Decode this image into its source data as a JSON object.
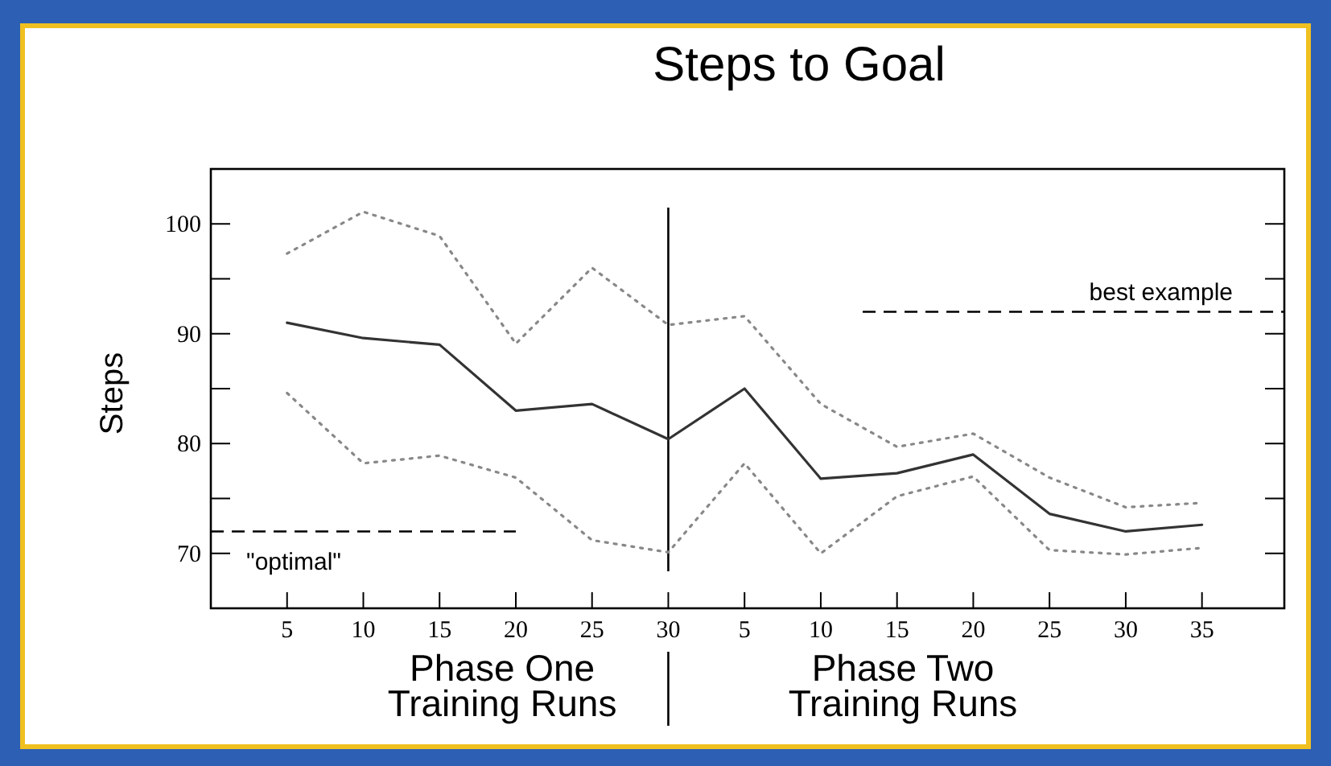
{
  "chart_data": {
    "type": "line",
    "title": "Steps to Goal",
    "ylabel": "Steps",
    "categories": [
      "5",
      "10",
      "15",
      "20",
      "25",
      "30",
      "5",
      "10",
      "15",
      "20",
      "25",
      "30",
      "35"
    ],
    "series": [
      {
        "color": "#888888",
        "line_style": "dotted",
        "values": [
          97.3,
          101.1,
          98.9,
          89.1,
          96.0,
          90.8,
          91.6,
          83.6,
          79.7,
          80.9,
          76.9,
          74.2,
          74.6
        ]
      },
      {
        "color": "#333333",
        "line_style": "solid",
        "values": [
          91.0,
          89.6,
          89.0,
          83.0,
          83.6,
          80.4,
          85.0,
          76.8,
          77.3,
          79.0,
          73.6,
          72.0,
          72.6
        ]
      },
      {
        "color": "#888888",
        "line_style": "dotted",
        "values": [
          84.6,
          78.2,
          78.9,
          76.9,
          71.2,
          70.1,
          78.2,
          70.0,
          75.2,
          77.0,
          70.3,
          69.9,
          70.5
        ]
      }
    ],
    "ylim": [
      65,
      105
    ],
    "yticks": [
      70,
      {
        "value": 75,
        "label": null
      },
      80,
      {
        "value": 85,
        "label": null
      },
      90,
      {
        "value": 95,
        "label": null
      },
      100
    ],
    "ref_lines": [
      {
        "axis": "y",
        "value": 72,
        "label": "\"optimal\"",
        "line_style": "dashed",
        "color": "#000000"
      },
      {
        "axis": "y",
        "value": 92,
        "label": "best example",
        "line_style": "dashed",
        "color": "#000000"
      },
      {
        "axis": "x",
        "value": "30",
        "color": "#000000",
        "line_style": "solid"
      }
    ],
    "annotations": [
      "Phase One\nTraining Runs",
      "Phase Two\nTraining Runs"
    ],
    "grid": false,
    "marker": "none"
  }
}
